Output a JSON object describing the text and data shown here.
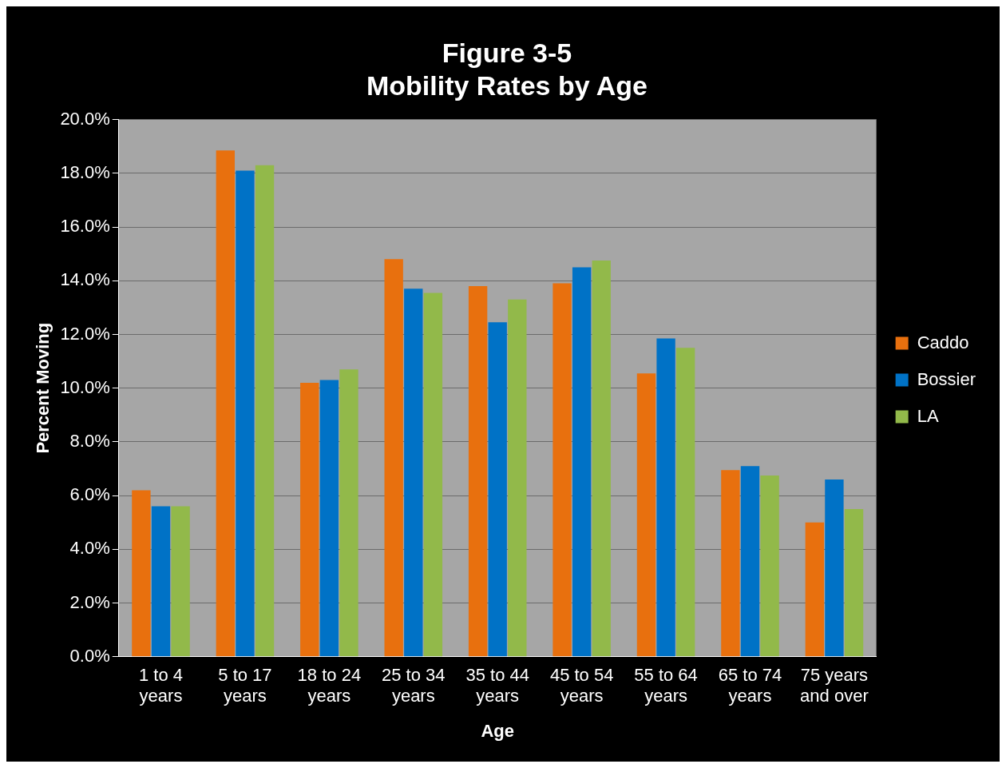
{
  "chart_data": {
    "type": "bar",
    "title": "Figure 3-5\nMobility Rates by Age",
    "xlabel": "Age",
    "ylabel": "Percent Moving",
    "categories": [
      "1 to 4 years",
      "5 to 17 years",
      "18 to 24 years",
      "25 to 34 years",
      "35 to 44 years",
      "45 to 54 years",
      "55 to 64 years",
      "65 to 74 years",
      "75 years and over"
    ],
    "series": [
      {
        "name": "Caddo",
        "color": "#e8700e",
        "values": [
          6.2,
          18.85,
          10.2,
          14.8,
          13.8,
          13.9,
          10.55,
          6.95,
          5.0
        ]
      },
      {
        "name": "Bossier",
        "color": "#0072c6",
        "values": [
          5.6,
          18.1,
          10.3,
          13.7,
          12.45,
          14.5,
          11.85,
          7.1,
          6.6
        ]
      },
      {
        "name": "LA",
        "color": "#92b94a",
        "values": [
          5.6,
          18.3,
          10.7,
          13.55,
          13.3,
          14.75,
          11.5,
          6.75,
          5.5
        ]
      }
    ],
    "ylim": [
      0,
      20
    ],
    "yticks": [
      {
        "value": 0,
        "label": "0.0%"
      },
      {
        "value": 2,
        "label": "2.0%"
      },
      {
        "value": 4,
        "label": "4.0%"
      },
      {
        "value": 6,
        "label": "6.0%"
      },
      {
        "value": 8,
        "label": "8.0%"
      },
      {
        "value": 10,
        "label": "10.0%"
      },
      {
        "value": 12,
        "label": "12.0%"
      },
      {
        "value": 14,
        "label": "14.0%"
      },
      {
        "value": 16,
        "label": "16.0%"
      },
      {
        "value": 18,
        "label": "18.0%"
      },
      {
        "value": 20,
        "label": "20.0%"
      }
    ],
    "grid": "y",
    "legend": "right"
  }
}
